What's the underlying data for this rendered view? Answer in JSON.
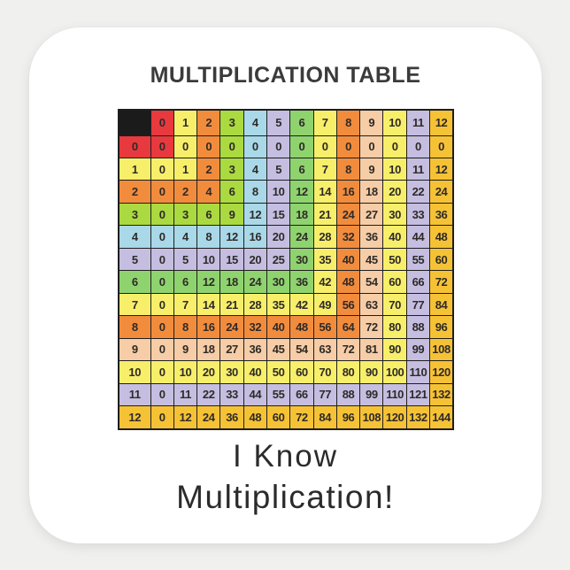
{
  "title": "MULTIPLICATION TABLE",
  "caption": {
    "line1": "I Know",
    "line2": "Multiplication!"
  },
  "colors": {
    "page_background": "#f0f0ee",
    "sticker_background": "#ffffff",
    "grid_line": "#1e1e1e",
    "corner_cell": "#1b1b1b",
    "number_text": "#2e2a28",
    "title_text": "#3b3b3b",
    "caption_text": "#2b2b2b"
  },
  "chart_data": {
    "type": "table",
    "title": "MULTIPLICATION TABLE",
    "column_headers": [
      0,
      1,
      2,
      3,
      4,
      5,
      6,
      7,
      8,
      9,
      10,
      11,
      12
    ],
    "row_headers": [
      0,
      1,
      2,
      3,
      4,
      5,
      6,
      7,
      8,
      9,
      10,
      11,
      12
    ],
    "rows": [
      [
        0,
        0,
        0,
        0,
        0,
        0,
        0,
        0,
        0,
        0,
        0,
        0,
        0
      ],
      [
        0,
        1,
        2,
        3,
        4,
        5,
        6,
        7,
        8,
        9,
        10,
        11,
        12
      ],
      [
        0,
        2,
        4,
        6,
        8,
        10,
        12,
        14,
        16,
        18,
        20,
        22,
        24
      ],
      [
        0,
        3,
        6,
        9,
        12,
        15,
        18,
        21,
        24,
        27,
        30,
        33,
        36
      ],
      [
        0,
        4,
        8,
        12,
        16,
        20,
        24,
        28,
        32,
        36,
        40,
        44,
        48
      ],
      [
        0,
        5,
        10,
        15,
        20,
        25,
        30,
        35,
        40,
        45,
        50,
        55,
        60
      ],
      [
        0,
        6,
        12,
        18,
        24,
        30,
        36,
        42,
        48,
        54,
        60,
        66,
        72
      ],
      [
        0,
        7,
        14,
        21,
        28,
        35,
        42,
        49,
        56,
        63,
        70,
        77,
        84
      ],
      [
        0,
        8,
        16,
        24,
        32,
        40,
        48,
        56,
        64,
        72,
        80,
        88,
        96
      ],
      [
        0,
        9,
        18,
        27,
        36,
        45,
        54,
        63,
        72,
        81,
        90,
        99,
        108
      ],
      [
        0,
        10,
        20,
        30,
        40,
        50,
        60,
        70,
        80,
        90,
        100,
        110,
        120
      ],
      [
        0,
        11,
        22,
        33,
        44,
        55,
        66,
        77,
        88,
        99,
        110,
        121,
        132
      ],
      [
        0,
        12,
        24,
        36,
        48,
        60,
        72,
        84,
        96,
        108,
        120,
        132,
        144
      ]
    ],
    "palette": [
      "#e8393f",
      "#f7ef6a",
      "#f28c3d",
      "#abd940",
      "#a9d8e8",
      "#c5bee1",
      "#8fd36f",
      "#f7ef6a",
      "#f28c3d",
      "#f6cda6",
      "#f7ef6a",
      "#c5bee1",
      "#f6c235"
    ],
    "cell_color_rule": "cell background = palette[max(row_index, column_index)]; top-left corner cell is black"
  }
}
